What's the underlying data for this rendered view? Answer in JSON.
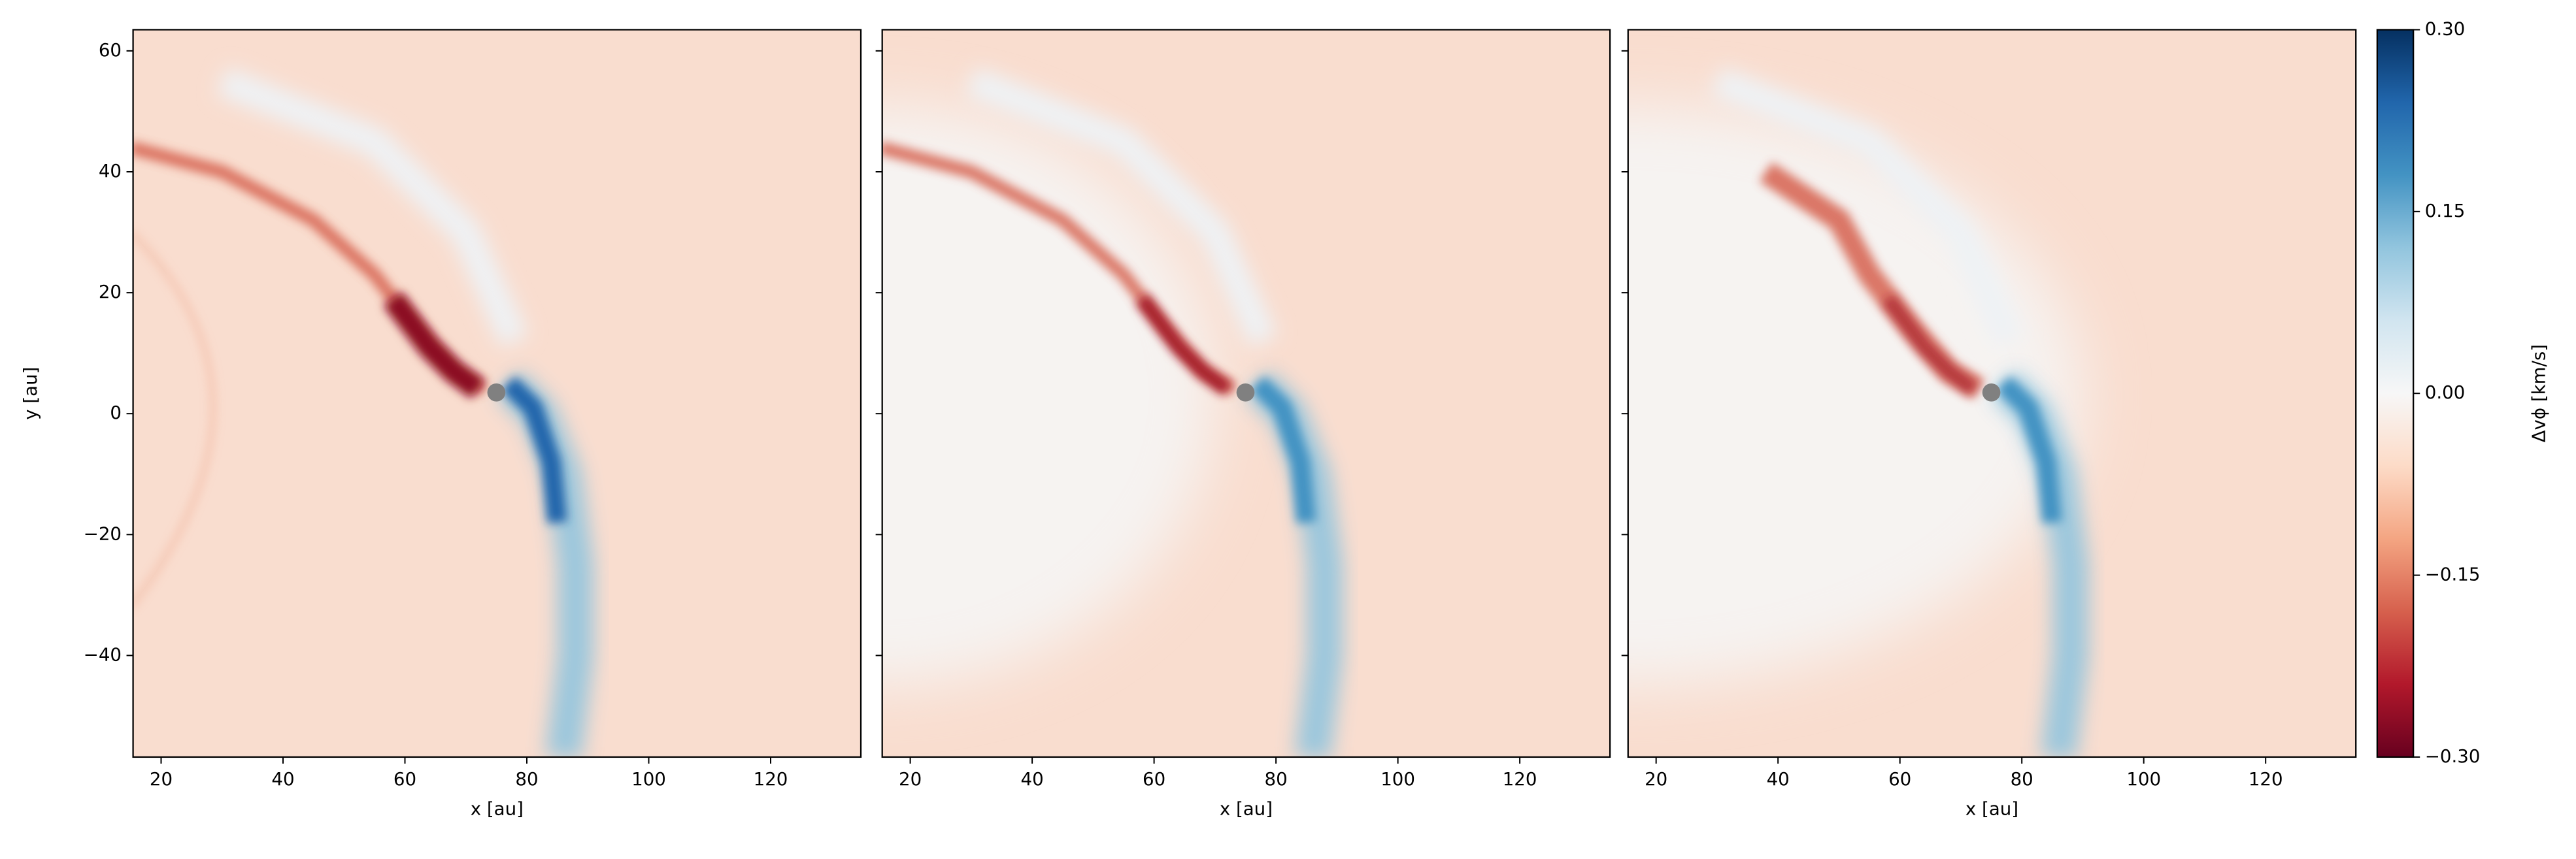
{
  "chart_data": [
    {
      "type": "heatmap",
      "xlabel": "x [au]",
      "ylabel": "y [au]",
      "xlim": [
        15.4,
        134.8
      ],
      "ylim": [
        -56.8,
        63.5
      ],
      "xticks": [
        20,
        40,
        60,
        80,
        100,
        120
      ],
      "yticks": [
        {
          "value": -40,
          "label": "−40"
        },
        {
          "value": -20,
          "label": "−20"
        },
        0,
        20,
        40,
        60
      ],
      "planet": {
        "x": 75,
        "y": 3.5,
        "color": "#808080"
      }
    },
    {
      "type": "heatmap",
      "xlabel": "x [au]",
      "xlim": [
        15.4,
        134.8
      ],
      "ylim": [
        -56.8,
        63.5
      ],
      "xticks": [
        20,
        40,
        60,
        80,
        100,
        120
      ],
      "yticks": [
        -40,
        -20,
        0,
        20,
        40,
        60
      ],
      "planet": {
        "x": 75,
        "y": 3.5,
        "color": "#808080"
      }
    },
    {
      "type": "heatmap",
      "xlabel": "x [au]",
      "xlim": [
        15.4,
        134.8
      ],
      "ylim": [
        -56.8,
        63.5
      ],
      "xticks": [
        20,
        40,
        60,
        80,
        100,
        120
      ],
      "yticks": [
        -40,
        -20,
        0,
        20,
        40,
        60
      ],
      "planet": {
        "x": 75,
        "y": 3.5,
        "color": "#808080"
      }
    },
    {
      "type": "colorbar",
      "label": "Δvϕ [km/s]",
      "ylim": [
        -0.3,
        0.3
      ],
      "yticks": [
        {
          "value": -0.3,
          "label": "−0.30"
        },
        {
          "value": -0.15,
          "label": "−0.15"
        },
        {
          "value": 0,
          "label": "0.00"
        },
        {
          "value": 0.15,
          "label": "0.15"
        },
        {
          "value": 0.3,
          "label": "0.30"
        }
      ],
      "colors": [
        "#67001f",
        "#b2182b",
        "#d6604d",
        "#f4a582",
        "#fddbc7",
        "#f7f7f7",
        "#d1e5f0",
        "#92c5de",
        "#4393c3",
        "#2166ac",
        "#053061"
      ]
    }
  ]
}
